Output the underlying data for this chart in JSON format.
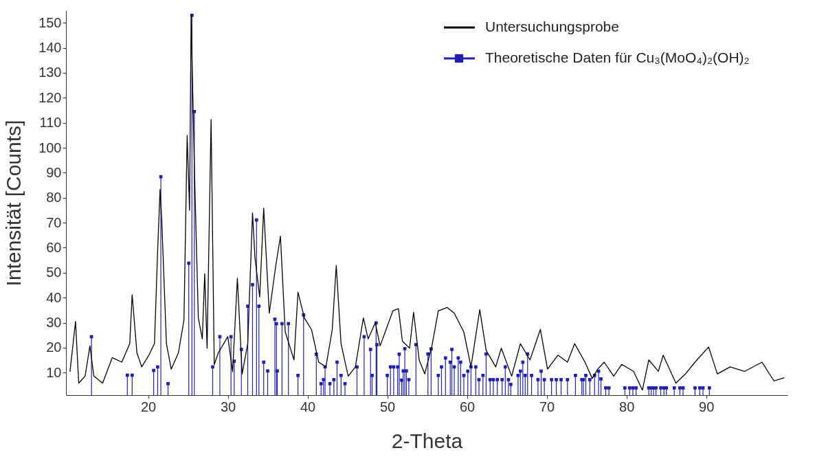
{
  "chart_data": {
    "type": "line",
    "xlabel": "2-Theta",
    "ylabel": "Intensität [Counts]",
    "xlim": [
      9.7,
      100.2
    ],
    "ylim": [
      1,
      155
    ],
    "xticks": [
      20,
      30,
      40,
      50,
      60,
      70,
      80,
      90
    ],
    "yticks": [
      10,
      20,
      30,
      40,
      50,
      60,
      70,
      80,
      90,
      100,
      110,
      120,
      130,
      140,
      150
    ],
    "grid": false,
    "legend": "top right",
    "series": [
      {
        "name": "Untersuchungsprobe",
        "color": "#000000",
        "x": [
          10.2,
          10.9,
          11.3,
          12.1,
          12.7,
          13.2,
          14.3,
          15.5,
          16.7,
          17.7,
          18.0,
          18.6,
          19.2,
          20.1,
          20.8,
          21.2,
          21.5,
          21.7,
          22.3,
          22.9,
          23.8,
          24.5,
          24.9,
          25.2,
          25.4,
          25.8,
          26.3,
          26.8,
          27.1,
          27.4,
          27.9,
          28.3,
          28.8,
          30.0,
          30.6,
          31.2,
          31.8,
          32.5,
          33.1,
          33.4,
          34.0,
          34.5,
          35.2,
          36.0,
          36.6,
          37.2,
          38.3,
          38.8,
          39.6,
          40.5,
          41.4,
          42.3,
          43.1,
          43.6,
          44.2,
          45.1,
          46.0,
          47.0,
          47.6,
          48.5,
          49.1,
          50.7,
          51.4,
          51.9,
          52.8,
          53.3,
          54.0,
          54.7,
          55.6,
          56.4,
          57.5,
          58.4,
          59.6,
          60.5,
          61.6,
          62.4,
          63.6,
          64.3,
          65.6,
          66.7,
          67.9,
          69.2,
          70.1,
          71.4,
          72.6,
          73.5,
          74.8,
          75.7,
          76.4,
          77.2,
          78.4,
          79.4,
          80.9,
          82.0,
          82.8,
          84.0,
          84.6,
          86.2,
          87.4,
          88.6,
          90.3,
          91.4,
          93.0,
          94.8,
          97.0,
          98.5,
          99.8
        ],
        "values": [
          10.4,
          30.5,
          5.8,
          8.6,
          20.7,
          8.6,
          5.8,
          16,
          14.2,
          21.6,
          41.2,
          17.9,
          12.3,
          17,
          21.6,
          59,
          83.3,
          72,
          21.6,
          11.4,
          17.9,
          31,
          105,
          75,
          153,
          92.6,
          31.9,
          23.5,
          49.6,
          19.8,
          111.3,
          13.2,
          17.9,
          24.4,
          10.4,
          47.8,
          9.5,
          21.6,
          73.9,
          56.2,
          40.3,
          75.8,
          33.8,
          52.5,
          64.6,
          26.3,
          15.1,
          42.2,
          31.9,
          27.2,
          14.2,
          12.3,
          27.2,
          52.9,
          21.6,
          8.6,
          12.3,
          31.9,
          23.5,
          30,
          20.7,
          34.7,
          35.6,
          22.6,
          19.8,
          34.2,
          15.1,
          9.5,
          20.7,
          34.7,
          36.1,
          33.8,
          26.3,
          12.3,
          35.2,
          18.9,
          12.3,
          19.8,
          8.6,
          21.6,
          15.1,
          27.3,
          11.4,
          17,
          14.2,
          21.6,
          14.2,
          7.7,
          11.4,
          14.2,
          8.6,
          13.3,
          10.5,
          3,
          15.1,
          10.5,
          17,
          5.8,
          9.5,
          14.2,
          20.3,
          9.5,
          12.3,
          10.5,
          14.2,
          6.7,
          8
        ]
      },
      {
        "name": "Theoretische Daten für Cu₃(MoO₄)₂(OH)₂",
        "type": "lollipop",
        "color": "#1f1fb4",
        "marker": "square",
        "x": [
          12.9,
          17.4,
          18.0,
          20.7,
          21.2,
          21.6,
          22.5,
          25.1,
          25.5,
          25.8,
          28.1,
          29.0,
          30.4,
          30.8,
          31.7,
          32.5,
          33.1,
          33.6,
          33.9,
          34.5,
          35.0,
          35.9,
          36.1,
          36.2,
          36.8,
          37.6,
          38.8,
          39.5,
          41.1,
          41.7,
          42.0,
          42.2,
          42.8,
          43.3,
          43.7,
          44.2,
          44.7,
          46.2,
          47.1,
          47.9,
          48.1,
          48.6,
          48.7,
          50.0,
          50.4,
          50.8,
          51.3,
          51.5,
          51.8,
          52.0,
          52.2,
          52.4,
          52.7,
          53.6,
          55.1,
          55.5,
          56.4,
          56.8,
          57.3,
          57.9,
          58.1,
          58.4,
          58.9,
          59.2,
          59.6,
          60.1,
          60.5,
          61.1,
          61.5,
          62.0,
          62.4,
          62.9,
          63.3,
          63.8,
          64.4,
          64.8,
          65.2,
          65.5,
          66.4,
          66.7,
          67.0,
          67.3,
          67.6,
          68.1,
          68.9,
          69.3,
          69.7,
          70.6,
          71.2,
          71.8,
          72.6,
          73.6,
          74.4,
          74.6,
          74.9,
          75.4,
          76.0,
          76.5,
          76.8,
          77.4,
          77.8,
          79.8,
          80.4,
          80.8,
          81.2,
          82.8,
          83.1,
          83.4,
          83.7,
          84.3,
          84.7,
          85.0,
          86.0,
          86.7,
          87.1,
          88.6,
          89.2,
          89.6,
          90.4
        ],
        "values": [
          24.4,
          9,
          9,
          10.9,
          12.3,
          88.4,
          5.6,
          53.8,
          153,
          114.5,
          12.3,
          24.4,
          24.4,
          14.6,
          19.3,
          36.6,
          45.2,
          71.1,
          36.6,
          14.2,
          10.7,
          31.4,
          29.6,
          10.7,
          29.6,
          29.6,
          8.9,
          33.1,
          17.4,
          5.6,
          7.2,
          12.3,
          5.6,
          7.2,
          14.2,
          8.9,
          5.6,
          12.3,
          24.4,
          19.3,
          8.9,
          29.9,
          21.2,
          8.9,
          12.3,
          12.3,
          12.3,
          17.4,
          7,
          10.7,
          19.6,
          10.7,
          7.2,
          21.2,
          17.5,
          19.5,
          8.9,
          12.3,
          15.9,
          14.2,
          19.3,
          12.3,
          15.9,
          14.2,
          8.9,
          10.6,
          12.3,
          12.3,
          7.2,
          8.9,
          17.5,
          7.2,
          7.2,
          7.2,
          7.2,
          12.3,
          7.2,
          5.3,
          8.9,
          10.6,
          14.2,
          8.9,
          17.5,
          8.9,
          7.2,
          10.6,
          7.2,
          7.2,
          7.2,
          7.2,
          7.2,
          8.9,
          7.2,
          7.2,
          8.9,
          7.2,
          8.9,
          10.6,
          7.5,
          3.9,
          3.9,
          3.9,
          3.9,
          3.9,
          3.9,
          3.9,
          3.9,
          3.9,
          3.9,
          3.9,
          3.9,
          3.9,
          3.9,
          3.9,
          3.9,
          3.9,
          3.9,
          3.9,
          3.9
        ]
      }
    ]
  }
}
